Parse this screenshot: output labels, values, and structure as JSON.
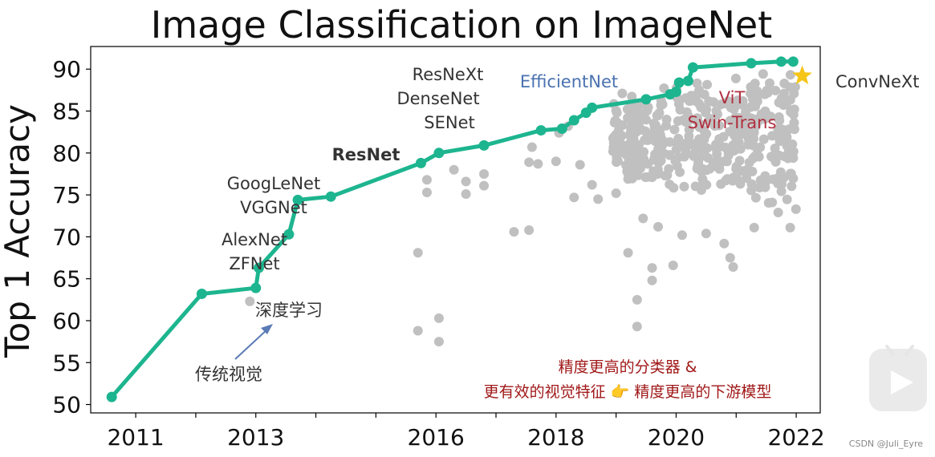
{
  "chart_data": {
    "type": "scatter",
    "title": "Image Classification on ImageNet",
    "ylabel": "Top 1 Accuracy",
    "xlabel": "",
    "x_tick_labels": [
      "2011",
      "2013",
      "2016",
      "2018",
      "2020",
      "2022"
    ],
    "y_ticks": [
      50,
      55,
      60,
      65,
      70,
      75,
      80,
      85,
      90
    ],
    "xlim": [
      2010.25,
      2022.4
    ],
    "ylim": [
      49,
      92.7
    ],
    "colors": {
      "sota": "#1db58f",
      "others": "#c0c0c0",
      "star": "#f5c518",
      "arrow": "#5b7bb5"
    },
    "series": [
      {
        "type": "line",
        "points": [
          [
            2010.6,
            50.9
          ],
          [
            2012.1,
            63.2
          ],
          [
            2013.0,
            63.9
          ],
          [
            2013.05,
            66.3
          ],
          [
            2013.55,
            70.3
          ],
          [
            2013.7,
            74.4
          ],
          [
            2014.25,
            74.8
          ],
          [
            2015.75,
            78.8
          ],
          [
            2016.05,
            80.0
          ],
          [
            2016.8,
            80.9
          ],
          [
            2017.75,
            82.7
          ],
          [
            2018.1,
            82.9
          ],
          [
            2018.3,
            83.9
          ],
          [
            2018.5,
            84.8
          ],
          [
            2018.6,
            85.4
          ],
          [
            2019.5,
            86.4
          ],
          [
            2019.9,
            87.0
          ],
          [
            2020.0,
            87.3
          ],
          [
            2020.05,
            88.4
          ],
          [
            2020.2,
            88.6
          ],
          [
            2020.28,
            90.2
          ],
          [
            2021.25,
            90.7
          ],
          [
            2021.75,
            90.9
          ],
          [
            2021.95,
            90.9
          ]
        ]
      },
      {
        "type": "scatter",
        "seed": 7,
        "points": [
          [
            2012.9,
            62.3
          ],
          [
            2015.7,
            58.8
          ],
          [
            2016.05,
            60.3
          ],
          [
            2016.05,
            57.5
          ],
          [
            2015.7,
            68.1
          ],
          [
            2015.85,
            75.3
          ],
          [
            2015.85,
            76.8
          ],
          [
            2016.3,
            78.0
          ],
          [
            2016.5,
            75.1
          ],
          [
            2016.5,
            76.6
          ],
          [
            2016.8,
            76.1
          ],
          [
            2016.8,
            77.5
          ],
          [
            2017.3,
            70.6
          ],
          [
            2017.55,
            70.8
          ],
          [
            2017.7,
            78.7
          ],
          [
            2017.6,
            80.7
          ],
          [
            2017.55,
            78.9
          ],
          [
            2018.05,
            82.4
          ],
          [
            2018.0,
            79.0
          ],
          [
            2018.4,
            78.6
          ],
          [
            2018.3,
            74.7
          ],
          [
            2018.6,
            76.2
          ],
          [
            2018.7,
            74.5
          ],
          [
            2018.2,
            83.2
          ],
          [
            2019.2,
            68.1
          ],
          [
            2019.35,
            62.5
          ],
          [
            2019.35,
            59.3
          ],
          [
            2019.6,
            64.8
          ],
          [
            2019.6,
            66.3
          ],
          [
            2019.95,
            66.6
          ],
          [
            2021.3,
            71.1
          ],
          [
            2021.9,
            71.1
          ],
          [
            2020.9,
            67.5
          ],
          [
            2020.95,
            66.4
          ],
          [
            2019.2,
            76.9
          ],
          [
            2019.0,
            75.2
          ],
          [
            2019.6,
            77.1
          ],
          [
            2019.7,
            71.2
          ],
          [
            2020.1,
            70.2
          ],
          [
            2020.5,
            70.4
          ],
          [
            2020.8,
            69.2
          ],
          [
            2019.45,
            72.2
          ],
          [
            2018.95,
            80.2
          ],
          [
            2021.95,
            83.1
          ],
          [
            2021.95,
            79.4
          ],
          [
            2021.6,
            74.1
          ],
          [
            2021.7,
            72.9
          ]
        ]
      }
    ],
    "annotations": {
      "resnext": "ResNeXt",
      "densenet": "DenseNet",
      "senet": "SENet",
      "efficientnet": "EfficientNet",
      "vit": "ViT",
      "swin": "Swin-Trans",
      "convnext": "ConvNeXt",
      "resnet": "ResNet",
      "googlenet": "GoogLeNet",
      "vggnet": "VGGNet",
      "alexnet": "AlexNet",
      "zfnet": "ZFNet",
      "deep_learning": "深度学习",
      "traditional_vision": "传统视觉",
      "claim_line1": "精度更高的分类器 &",
      "claim_line2": "更有效的视觉特征 👉 精度更高的下游模型"
    },
    "watermark": "CSDN @Juli_Eyre"
  }
}
